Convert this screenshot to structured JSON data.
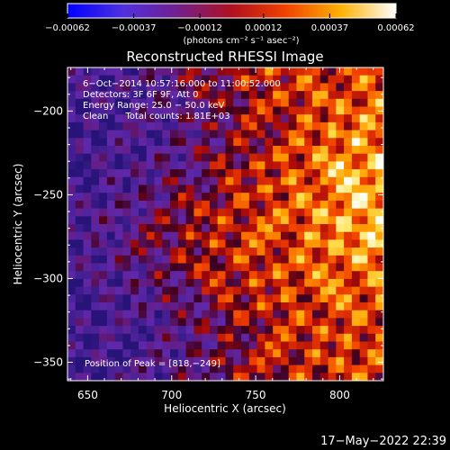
{
  "chart_data": {
    "type": "heatmap",
    "title": "Reconstructed RHESSI Image",
    "xlabel": "Heliocentric X (arcsec)",
    "ylabel": "Heliocentric Y (arcsec)",
    "xlim": [
      638,
      826
    ],
    "ylim": [
      -361,
      -174
    ],
    "x_ticks": [
      650,
      700,
      750,
      800
    ],
    "x_tick_labels": [
      "650",
      "700",
      "750",
      "800"
    ],
    "y_ticks": [
      -200,
      -250,
      -300,
      -350
    ],
    "y_tick_labels": [
      "−200",
      "−250",
      "−300",
      "−350"
    ],
    "colorbar": {
      "range": [
        -0.00062,
        0.00062
      ],
      "tick_values": [
        -0.00062,
        -0.00037,
        -0.00012,
        0.00012,
        0.00037,
        0.00062
      ],
      "tick_labels": [
        "−0.00062",
        "−0.00037",
        "−0.00012",
        "0.00012",
        "0.00037",
        "0.00062"
      ],
      "unit_label": "(photons cm⁻² s⁻¹ asec⁻²)"
    },
    "annotations": [
      "6−Oct−2014 10:57:16.000 to 11:00:52.000",
      "Detectors: 3F 6F 9F, Att 0",
      "Energy Range: 25.0 − 50.0 keV",
      "Clean      Total counts: 1.81E+03"
    ],
    "peak_label": "Position of Peak = [818,−249]",
    "peak_position": [
      818,
      -249
    ],
    "grid": false
  },
  "footer": {
    "timestamp": "17−May−2022 22:39"
  },
  "colors": {
    "background": "#000000",
    "text": "#ffffff",
    "colorbar_stops": [
      "#0000ff",
      "#7040c0",
      "#702080",
      "#c01010",
      "#ff6000",
      "#ffd000",
      "#ffffff"
    ]
  }
}
